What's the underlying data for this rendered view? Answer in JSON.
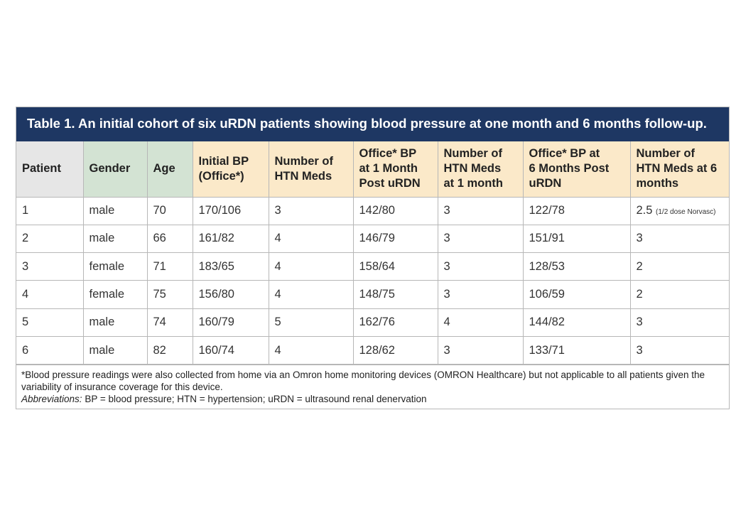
{
  "table": {
    "title": "Table 1. An initial cohort of six uRDN patients showing blood pressure at one month and 6 months follow-up.",
    "headers": [
      {
        "line1": "Patient",
        "line2": "",
        "line3": ""
      },
      {
        "line1": "Gender",
        "line2": "",
        "line3": ""
      },
      {
        "line1": "Age",
        "line2": "",
        "line3": ""
      },
      {
        "line1": "Initial BP",
        "line2": "(Office*)",
        "line3": ""
      },
      {
        "line1": "Number of",
        "line2": "HTN Meds",
        "line3": ""
      },
      {
        "line1": "Office* BP",
        "line2": "at 1 Month",
        "line3": "Post uRDN"
      },
      {
        "line1": "Number of",
        "line2": "HTN Meds",
        "line3": "at 1 month"
      },
      {
        "line1": "Office* BP at",
        "line2": "6 Months Post",
        "line3": "uRDN"
      },
      {
        "line1": "Number of",
        "line2": "HTN Meds at 6",
        "line3": "months"
      }
    ],
    "rows": [
      {
        "patient": "1",
        "gender": "male",
        "age": "70",
        "initial_bp": "170/106",
        "meds": "3",
        "bp_1m": "142/80",
        "meds_1m": "3",
        "bp_6m": "122/78",
        "meds_6m": "2.5",
        "note_6m": "(1/2 dose Norvasc)"
      },
      {
        "patient": "2",
        "gender": "male",
        "age": "66",
        "initial_bp": "161/82",
        "meds": "4",
        "bp_1m": "146/79",
        "meds_1m": "3",
        "bp_6m": "151/91",
        "meds_6m": "3",
        "note_6m": ""
      },
      {
        "patient": "3",
        "gender": "female",
        "age": "71",
        "initial_bp": "183/65",
        "meds": "4",
        "bp_1m": "158/64",
        "meds_1m": "3",
        "bp_6m": "128/53",
        "meds_6m": "2",
        "note_6m": ""
      },
      {
        "patient": "4",
        "gender": "female",
        "age": "75",
        "initial_bp": "156/80",
        "meds": "4",
        "bp_1m": "148/75",
        "meds_1m": "3",
        "bp_6m": "106/59",
        "meds_6m": "2",
        "note_6m": ""
      },
      {
        "patient": "5",
        "gender": "male",
        "age": "74",
        "initial_bp": "160/79",
        "meds": "5",
        "bp_1m": "162/76",
        "meds_1m": "4",
        "bp_6m": "144/82",
        "meds_6m": "3",
        "note_6m": ""
      },
      {
        "patient": "6",
        "gender": "male",
        "age": "82",
        "initial_bp": "160/74",
        "meds": "4",
        "bp_1m": "128/62",
        "meds_1m": "3",
        "bp_6m": "133/71",
        "meds_6m": "3",
        "note_6m": ""
      }
    ],
    "footnote": "*Blood pressure readings were also collected from home via an Omron home monitoring devices (OMRON Healthcare) but not applicable to all patients given the variability of insurance coverage for this device.",
    "abbrev_label": "Abbreviations:",
    "abbrev_text": " BP = blood pressure; HTN = hypertension; uRDN = ultrasound renal denervation"
  },
  "colors": {
    "title_bg": "#1e3763",
    "header_grey": "#e6e6e6",
    "header_green": "#d3e3d3",
    "header_tan": "#fbe9c9"
  }
}
